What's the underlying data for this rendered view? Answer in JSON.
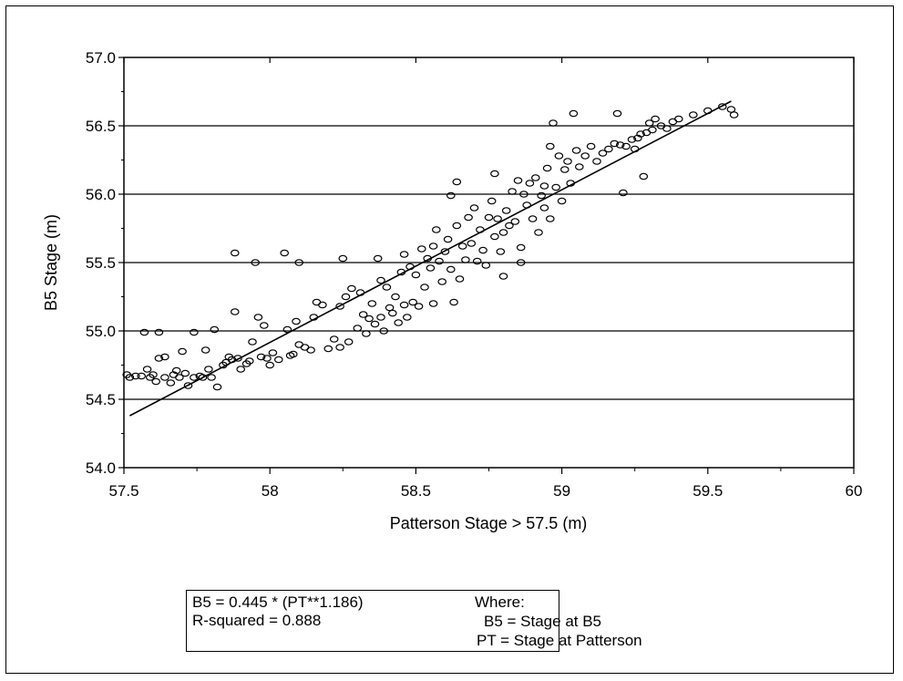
{
  "chart_data": {
    "type": "scatter",
    "title": "",
    "xlabel": "Patterson Stage > 57.5 (m)",
    "ylabel": "B5 Stage (m)",
    "xlim": [
      57.5,
      60
    ],
    "ylim": [
      54.0,
      57.0
    ],
    "x_ticks": [
      "57.5",
      "58",
      "58.5",
      "59",
      "59.5",
      "60"
    ],
    "y_ticks": [
      "54.0",
      "54.5",
      "55.0",
      "55.5",
      "56.0",
      "56.5",
      "57.0"
    ],
    "grid": "horizontal",
    "marker": "open-circle",
    "trendline": {
      "x": [
        57.52,
        59.58
      ],
      "y": [
        54.38,
        56.68
      ]
    },
    "series": [
      {
        "points": [
          [
            57.51,
            54.68
          ],
          [
            57.52,
            54.66
          ],
          [
            57.54,
            54.67
          ],
          [
            57.56,
            54.67
          ],
          [
            57.57,
            54.99
          ],
          [
            57.58,
            54.72
          ],
          [
            57.59,
            54.66
          ],
          [
            57.6,
            54.68
          ],
          [
            57.61,
            54.63
          ],
          [
            57.62,
            54.99
          ],
          [
            57.62,
            54.8
          ],
          [
            57.64,
            54.81
          ],
          [
            57.64,
            54.66
          ],
          [
            57.66,
            54.62
          ],
          [
            57.67,
            54.68
          ],
          [
            57.68,
            54.71
          ],
          [
            57.69,
            54.66
          ],
          [
            57.7,
            54.85
          ],
          [
            57.71,
            54.69
          ],
          [
            57.72,
            54.6
          ],
          [
            57.74,
            54.99
          ],
          [
            57.74,
            54.66
          ],
          [
            57.76,
            54.67
          ],
          [
            57.77,
            54.66
          ],
          [
            57.78,
            54.86
          ],
          [
            57.79,
            54.72
          ],
          [
            57.8,
            54.66
          ],
          [
            57.81,
            55.01
          ],
          [
            57.82,
            54.59
          ],
          [
            57.84,
            54.75
          ],
          [
            57.85,
            54.77
          ],
          [
            57.86,
            54.81
          ],
          [
            57.87,
            54.79
          ],
          [
            57.88,
            55.57
          ],
          [
            57.88,
            55.14
          ],
          [
            57.89,
            54.8
          ],
          [
            57.9,
            54.72
          ],
          [
            57.92,
            54.76
          ],
          [
            57.93,
            54.78
          ],
          [
            57.94,
            54.92
          ],
          [
            57.95,
            55.5
          ],
          [
            57.96,
            55.1
          ],
          [
            57.97,
            54.81
          ],
          [
            57.98,
            55.04
          ],
          [
            57.99,
            54.8
          ],
          [
            58.0,
            54.75
          ],
          [
            58.01,
            54.84
          ],
          [
            58.03,
            54.79
          ],
          [
            58.05,
            55.57
          ],
          [
            58.06,
            55.01
          ],
          [
            58.07,
            54.82
          ],
          [
            58.08,
            54.83
          ],
          [
            58.09,
            55.07
          ],
          [
            58.1,
            55.5
          ],
          [
            58.1,
            54.9
          ],
          [
            58.12,
            54.88
          ],
          [
            58.14,
            54.86
          ],
          [
            58.15,
            55.1
          ],
          [
            58.16,
            55.21
          ],
          [
            58.18,
            55.19
          ],
          [
            58.2,
            54.87
          ],
          [
            58.22,
            54.94
          ],
          [
            58.24,
            55.18
          ],
          [
            58.24,
            54.88
          ],
          [
            58.25,
            55.53
          ],
          [
            58.26,
            55.25
          ],
          [
            58.27,
            54.92
          ],
          [
            58.28,
            55.31
          ],
          [
            58.3,
            55.02
          ],
          [
            58.31,
            55.28
          ],
          [
            58.32,
            55.12
          ],
          [
            58.33,
            54.98
          ],
          [
            58.34,
            55.09
          ],
          [
            58.35,
            55.2
          ],
          [
            58.36,
            55.05
          ],
          [
            58.37,
            55.53
          ],
          [
            58.38,
            55.37
          ],
          [
            58.38,
            55.1
          ],
          [
            58.39,
            55.0
          ],
          [
            58.4,
            55.32
          ],
          [
            58.41,
            55.17
          ],
          [
            58.42,
            55.13
          ],
          [
            58.43,
            55.25
          ],
          [
            58.44,
            55.06
          ],
          [
            58.45,
            55.43
          ],
          [
            58.46,
            55.19
          ],
          [
            58.46,
            55.56
          ],
          [
            58.47,
            55.1
          ],
          [
            58.48,
            55.47
          ],
          [
            58.49,
            55.21
          ],
          [
            58.5,
            55.41
          ],
          [
            58.51,
            55.18
          ],
          [
            58.52,
            55.6
          ],
          [
            58.53,
            55.32
          ],
          [
            58.54,
            55.53
          ],
          [
            58.55,
            55.46
          ],
          [
            58.56,
            55.62
          ],
          [
            58.56,
            55.2
          ],
          [
            58.57,
            55.74
          ],
          [
            58.58,
            55.51
          ],
          [
            58.59,
            55.36
          ],
          [
            58.6,
            55.58
          ],
          [
            58.61,
            55.67
          ],
          [
            58.62,
            55.45
          ],
          [
            58.62,
            55.99
          ],
          [
            58.63,
            55.21
          ],
          [
            58.64,
            56.09
          ],
          [
            58.64,
            55.77
          ],
          [
            58.65,
            55.38
          ],
          [
            58.66,
            55.62
          ],
          [
            58.67,
            55.52
          ],
          [
            58.68,
            55.83
          ],
          [
            58.69,
            55.64
          ],
          [
            58.7,
            55.9
          ],
          [
            58.71,
            55.51
          ],
          [
            58.72,
            55.74
          ],
          [
            58.73,
            55.59
          ],
          [
            58.74,
            55.48
          ],
          [
            58.75,
            55.83
          ],
          [
            58.76,
            55.95
          ],
          [
            58.77,
            55.69
          ],
          [
            58.77,
            56.15
          ],
          [
            58.78,
            55.82
          ],
          [
            58.79,
            55.58
          ],
          [
            58.8,
            55.72
          ],
          [
            58.8,
            55.4
          ],
          [
            58.81,
            55.88
          ],
          [
            58.82,
            55.77
          ],
          [
            58.83,
            56.02
          ],
          [
            58.84,
            55.8
          ],
          [
            58.85,
            56.1
          ],
          [
            58.86,
            55.61
          ],
          [
            58.86,
            55.5
          ],
          [
            58.87,
            56.0
          ],
          [
            58.88,
            55.92
          ],
          [
            58.89,
            56.08
          ],
          [
            58.9,
            55.82
          ],
          [
            58.91,
            56.12
          ],
          [
            58.92,
            55.72
          ],
          [
            58.93,
            55.99
          ],
          [
            58.94,
            56.06
          ],
          [
            58.94,
            55.9
          ],
          [
            58.95,
            56.19
          ],
          [
            58.96,
            56.35
          ],
          [
            58.96,
            55.82
          ],
          [
            58.97,
            56.52
          ],
          [
            58.98,
            56.05
          ],
          [
            58.99,
            56.28
          ],
          [
            59.0,
            55.95
          ],
          [
            59.01,
            56.18
          ],
          [
            59.02,
            56.24
          ],
          [
            59.03,
            56.08
          ],
          [
            59.04,
            56.59
          ],
          [
            59.05,
            56.32
          ],
          [
            59.06,
            56.2
          ],
          [
            59.08,
            56.28
          ],
          [
            59.1,
            56.35
          ],
          [
            59.12,
            56.24
          ],
          [
            59.14,
            56.3
          ],
          [
            59.16,
            56.33
          ],
          [
            59.18,
            56.37
          ],
          [
            59.19,
            56.59
          ],
          [
            59.2,
            56.36
          ],
          [
            59.21,
            56.01
          ],
          [
            59.22,
            56.35
          ],
          [
            59.24,
            56.4
          ],
          [
            59.25,
            56.33
          ],
          [
            59.26,
            56.41
          ],
          [
            59.27,
            56.44
          ],
          [
            59.28,
            56.13
          ],
          [
            59.29,
            56.45
          ],
          [
            59.3,
            56.52
          ],
          [
            59.31,
            56.47
          ],
          [
            59.32,
            56.55
          ],
          [
            59.34,
            56.5
          ],
          [
            59.36,
            56.48
          ],
          [
            59.38,
            56.53
          ],
          [
            59.4,
            56.55
          ],
          [
            59.45,
            56.58
          ],
          [
            59.5,
            56.61
          ],
          [
            59.55,
            56.64
          ],
          [
            59.58,
            56.62
          ],
          [
            59.59,
            56.58
          ]
        ]
      }
    ],
    "annotation": {
      "equation": "B5 = 0.445 * (PT**1.186)",
      "r_squared": "R-squared = 0.888",
      "where_label": "Where:",
      "def_b5": "B5 = Stage at B5",
      "def_pt": "PT = Stage at Patterson"
    }
  }
}
